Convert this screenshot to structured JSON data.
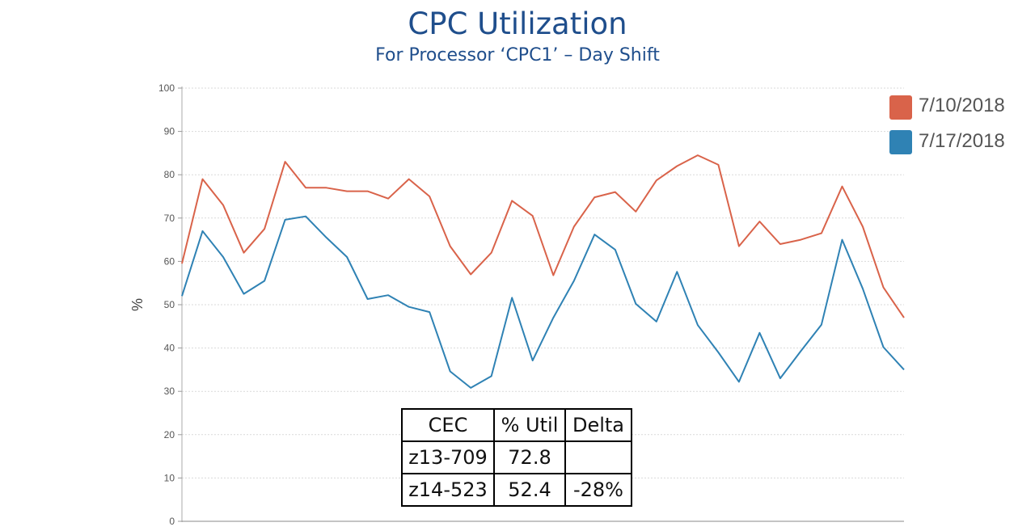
{
  "chart_data": {
    "type": "line",
    "title": "CPC Utilization",
    "subtitle": "For Processor ‘CPC1’ – Day Shift",
    "ylabel": "%",
    "xlabel": "",
    "ylim": [
      0,
      100
    ],
    "yticks": [
      0,
      10,
      20,
      30,
      40,
      50,
      60,
      70,
      80,
      90,
      100
    ],
    "grid": true,
    "legend_position": "top-right",
    "series": [
      {
        "name": "7/10/2018",
        "color": "#d9634a",
        "values": [
          59.5,
          79,
          73,
          62,
          67.5,
          83,
          77,
          77,
          76.2,
          76.2,
          74.5,
          79,
          75,
          63.5,
          57,
          62,
          74,
          70.5,
          56.8,
          68,
          74.8,
          76,
          71.5,
          78.7,
          82,
          84.5,
          82.3,
          63.5,
          69.2,
          64,
          65,
          66.5,
          77.3,
          68,
          54,
          47
        ]
      },
      {
        "name": "7/17/2018",
        "color": "#2f82b4",
        "values": [
          52,
          67,
          61,
          52.5,
          55.5,
          69.6,
          70.4,
          65.5,
          61,
          51.3,
          52.2,
          49.5,
          48.3,
          34.6,
          30.8,
          33.5,
          51.6,
          37.1,
          47,
          55.5,
          66.2,
          62.7,
          50.2,
          46.1,
          57.6,
          45.3,
          39,
          32.2,
          43.5,
          33,
          39.3,
          45.4,
          65,
          53.7,
          40.2,
          35
        ]
      }
    ]
  },
  "table": {
    "headers": [
      "CEC",
      "% Util",
      "Delta"
    ],
    "rows": [
      [
        "z13-709",
        "72.8",
        ""
      ],
      [
        "z14-523",
        "52.4",
        "-28%"
      ]
    ]
  }
}
